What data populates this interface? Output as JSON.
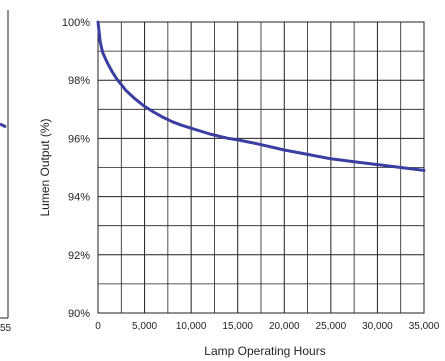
{
  "chart_data": {
    "type": "line",
    "xlabel": "Lamp Operating Hours",
    "ylabel": "Lumen Output (%)",
    "xlim": [
      0,
      35000
    ],
    "ylim": [
      90,
      100
    ],
    "x_ticks": [
      0,
      5000,
      10000,
      15000,
      20000,
      25000,
      30000,
      35000
    ],
    "x_tick_labels": [
      "0",
      "5,000",
      "10,000",
      "15,000",
      "20,000",
      "25,000",
      "30,000",
      "35,000"
    ],
    "y_ticks": [
      90,
      92,
      94,
      96,
      98,
      100
    ],
    "y_tick_labels": [
      "90%",
      "92%",
      "94%",
      "96%",
      "98%",
      "100%"
    ],
    "x_minor_gridlines": [
      2500,
      7500,
      12500,
      17500,
      22500,
      27500,
      32500
    ],
    "y_minor_gridlines": [
      91,
      93,
      95,
      97,
      99
    ],
    "grid": true,
    "legend": "none",
    "line_color": "#3a3ea0",
    "grid_color": "#231f20",
    "series": [
      {
        "x": [
          0,
          250,
          500,
          1000,
          1500,
          2000,
          2500,
          3000,
          4000,
          5000,
          6000,
          7000,
          8000,
          9000,
          10000,
          12000,
          14000,
          15000,
          17000,
          20000,
          22500,
          25000,
          27500,
          30000,
          32500,
          35000
        ],
        "values": [
          100,
          99.3,
          98.95,
          98.6,
          98.3,
          98.05,
          97.85,
          97.65,
          97.35,
          97.1,
          96.9,
          96.72,
          96.57,
          96.45,
          96.35,
          96.15,
          96.0,
          95.95,
          95.82,
          95.6,
          95.45,
          95.3,
          95.2,
          95.1,
          95.0,
          94.9
        ]
      }
    ]
  },
  "left_fragment": {
    "edge_label": "55"
  }
}
